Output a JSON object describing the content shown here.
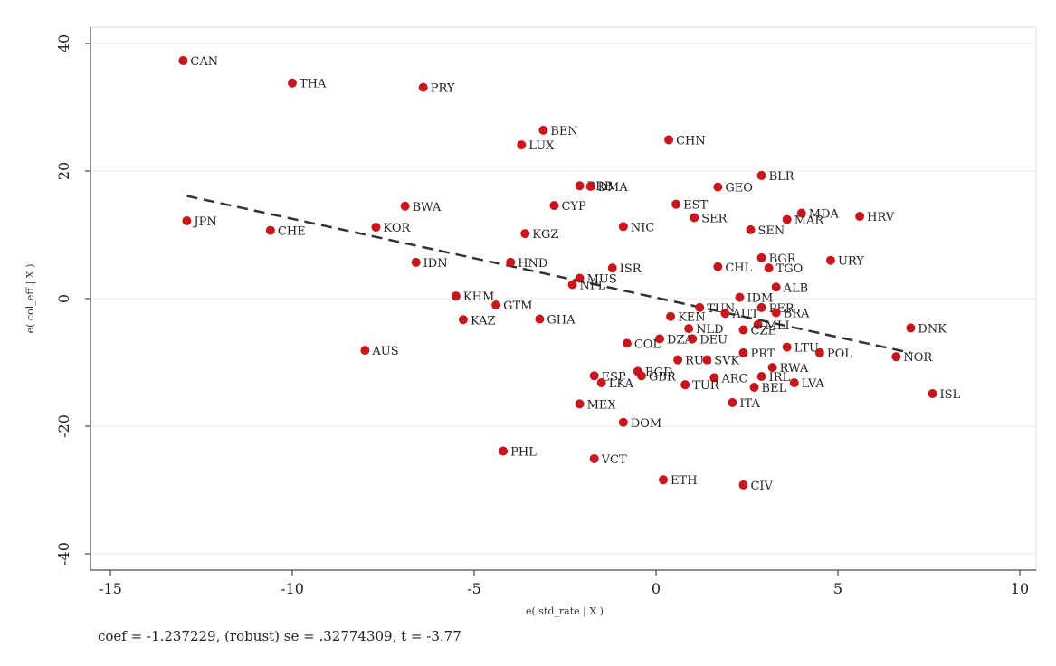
{
  "chart_data": {
    "type": "scatter",
    "xlabel": "e( std_rate | X )",
    "ylabel": "e( col_eff | X )",
    "xlim": [
      -15,
      10
    ],
    "ylim": [
      -40,
      40
    ],
    "x_ticks": [
      -15,
      -10,
      -5,
      0,
      5,
      10
    ],
    "y_ticks": [
      -40,
      -20,
      0,
      20,
      40
    ],
    "grid": true,
    "note": "coef = -1.237229, (robust) se = .32774309, t = -3.77",
    "fit_line": {
      "x": [
        -12.9,
        7.0
      ],
      "y": [
        16.1,
        -8.5
      ],
      "style": "dashed"
    },
    "colors": {
      "point": "#c8161d",
      "line": "#333333",
      "grid": "#ebebeb"
    },
    "points": [
      {
        "label": "CAN",
        "x": -13.0,
        "y": 37.3
      },
      {
        "label": "THA",
        "x": -10.0,
        "y": 33.8
      },
      {
        "label": "PRY",
        "x": -6.4,
        "y": 33.1
      },
      {
        "label": "BEN",
        "x": -3.1,
        "y": 26.4
      },
      {
        "label": "LUX",
        "x": -3.7,
        "y": 24.1
      },
      {
        "label": "CHN",
        "x": 0.35,
        "y": 24.9
      },
      {
        "label": "BLR",
        "x": 2.9,
        "y": 19.3
      },
      {
        "label": "GEO",
        "x": 1.7,
        "y": 17.5
      },
      {
        "label": "BRB",
        "x": -2.1,
        "y": 17.7
      },
      {
        "label": "DMA",
        "x": -1.8,
        "y": 17.6
      },
      {
        "label": "BWA",
        "x": -6.9,
        "y": 14.5
      },
      {
        "label": "CYP",
        "x": -2.8,
        "y": 14.6
      },
      {
        "label": "EST",
        "x": 0.55,
        "y": 14.8
      },
      {
        "label": "SER",
        "x": 1.05,
        "y": 12.7
      },
      {
        "label": "MDA",
        "x": 4.0,
        "y": 13.4
      },
      {
        "label": "MAR",
        "x": 3.6,
        "y": 12.4
      },
      {
        "label": "HRV",
        "x": 5.6,
        "y": 12.9
      },
      {
        "label": "JPN",
        "x": -12.9,
        "y": 12.2
      },
      {
        "label": "CHE",
        "x": -10.6,
        "y": 10.7
      },
      {
        "label": "KOR",
        "x": -7.7,
        "y": 11.2
      },
      {
        "label": "NIC",
        "x": -0.9,
        "y": 11.3
      },
      {
        "label": "SEN",
        "x": 2.6,
        "y": 10.8
      },
      {
        "label": "KGZ",
        "x": -3.6,
        "y": 10.2
      },
      {
        "label": "BGR",
        "x": 2.9,
        "y": 6.4
      },
      {
        "label": "URY",
        "x": 4.8,
        "y": 6.0
      },
      {
        "label": "IDN",
        "x": -6.6,
        "y": 5.7
      },
      {
        "label": "HND",
        "x": -4.0,
        "y": 5.7
      },
      {
        "label": "ISR",
        "x": -1.2,
        "y": 4.8
      },
      {
        "label": "CHL",
        "x": 1.7,
        "y": 5.0
      },
      {
        "label": "TGO",
        "x": 3.1,
        "y": 4.8
      },
      {
        "label": "MUS",
        "x": -2.1,
        "y": 3.2
      },
      {
        "label": "NPL",
        "x": -2.3,
        "y": 2.2
      },
      {
        "label": "ALB",
        "x": 3.3,
        "y": 1.8
      },
      {
        "label": "KHM",
        "x": -5.5,
        "y": 0.4
      },
      {
        "label": "IDM",
        "x": 2.3,
        "y": 0.2
      },
      {
        "label": "GTM",
        "x": -4.4,
        "y": -1.0
      },
      {
        "label": "TUN",
        "x": 1.2,
        "y": -1.4
      },
      {
        "label": "PER",
        "x": 2.9,
        "y": -1.4
      },
      {
        "label": "BRA",
        "x": 3.3,
        "y": -2.2
      },
      {
        "label": "AUT",
        "x": 1.9,
        "y": -2.3
      },
      {
        "label": "KEN",
        "x": 0.4,
        "y": -2.8
      },
      {
        "label": "KAZ",
        "x": -5.3,
        "y": -3.3
      },
      {
        "label": "GHA",
        "x": -3.2,
        "y": -3.2
      },
      {
        "label": "MLI",
        "x": 2.8,
        "y": -4.1
      },
      {
        "label": "NLD",
        "x": 0.9,
        "y": -4.7
      },
      {
        "label": "DNK",
        "x": 7.0,
        "y": -4.6
      },
      {
        "label": "CZE",
        "x": 2.4,
        "y": -4.9
      },
      {
        "label": "DZA",
        "x": 0.1,
        "y": -6.3
      },
      {
        "label": "DEU",
        "x": 1.0,
        "y": -6.3
      },
      {
        "label": "COL",
        "x": -0.8,
        "y": -7.0
      },
      {
        "label": "LTU",
        "x": 3.6,
        "y": -7.6
      },
      {
        "label": "AUS",
        "x": -8.0,
        "y": -8.1
      },
      {
        "label": "PRT",
        "x": 2.4,
        "y": -8.5
      },
      {
        "label": "POL",
        "x": 4.5,
        "y": -8.5
      },
      {
        "label": "NOR",
        "x": 6.6,
        "y": -9.1
      },
      {
        "label": "RUS",
        "x": 0.6,
        "y": -9.6
      },
      {
        "label": "SVK",
        "x": 1.4,
        "y": -9.6
      },
      {
        "label": "RWA",
        "x": 3.2,
        "y": -10.8
      },
      {
        "label": "BGD",
        "x": -0.5,
        "y": -11.4
      },
      {
        "label": "ESP",
        "x": -1.7,
        "y": -12.1
      },
      {
        "label": "GBR",
        "x": -0.4,
        "y": -12.1
      },
      {
        "label": "ARC",
        "x": 1.6,
        "y": -12.4
      },
      {
        "label": "IRL",
        "x": 2.9,
        "y": -12.2
      },
      {
        "label": "LKA",
        "x": -1.5,
        "y": -13.2
      },
      {
        "label": "TUR",
        "x": 0.8,
        "y": -13.5
      },
      {
        "label": "LVA",
        "x": 3.8,
        "y": -13.2
      },
      {
        "label": "BEL",
        "x": 2.7,
        "y": -13.9
      },
      {
        "label": "ISL",
        "x": 7.6,
        "y": -14.9
      },
      {
        "label": "ITA",
        "x": 2.1,
        "y": -16.3
      },
      {
        "label": "MEX",
        "x": -2.1,
        "y": -16.5
      },
      {
        "label": "DOM",
        "x": -0.9,
        "y": -19.4
      },
      {
        "label": "PHL",
        "x": -4.2,
        "y": -23.9
      },
      {
        "label": "VCT",
        "x": -1.7,
        "y": -25.1
      },
      {
        "label": "ETH",
        "x": 0.2,
        "y": -28.4
      },
      {
        "label": "CIV",
        "x": 2.4,
        "y": -29.2
      }
    ]
  }
}
